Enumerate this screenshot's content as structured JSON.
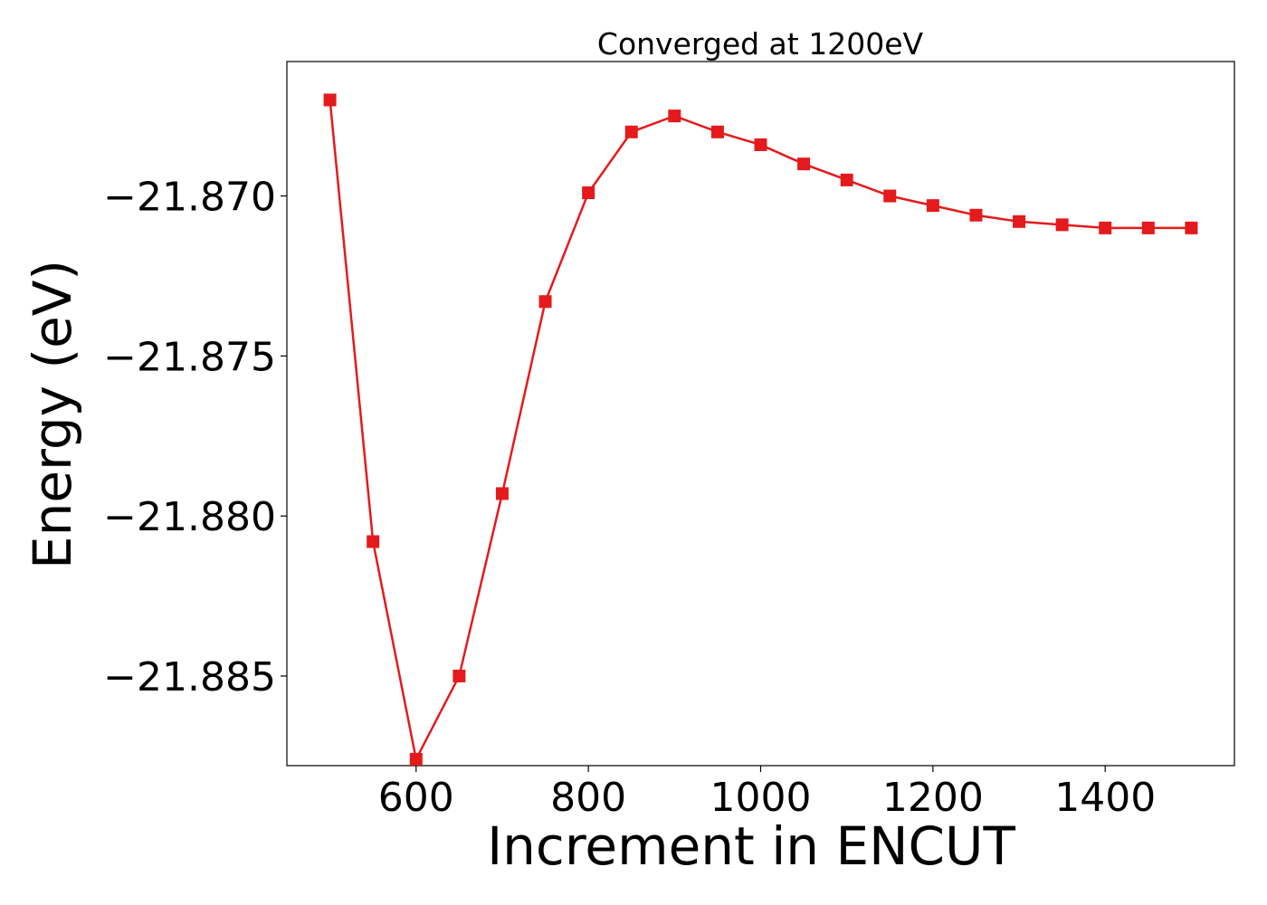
{
  "chart_data": {
    "type": "line",
    "title": "Converged at 1200eV",
    "xlabel": "Increment in ENCUT",
    "ylabel": "Energy (eV)",
    "xlim": [
      450,
      1550
    ],
    "ylim": [
      -21.8878,
      -21.8658
    ],
    "xticks": [
      600,
      800,
      1000,
      1200,
      1400
    ],
    "xtick_labels": [
      "600",
      "800",
      "1000",
      "1200",
      "1400"
    ],
    "yticks": [
      -21.87,
      -21.875,
      -21.88,
      -21.885
    ],
    "ytick_labels": [
      "−21.870",
      "−21.875",
      "−21.880",
      "−21.885"
    ],
    "grid": false,
    "series": [
      {
        "color": "#e41a1c",
        "marker": "square",
        "x": [
          500,
          550,
          600,
          650,
          700,
          750,
          800,
          850,
          900,
          950,
          1000,
          1050,
          1100,
          1150,
          1200,
          1250,
          1300,
          1350,
          1400,
          1450,
          1500
        ],
        "y": [
          -21.867,
          -21.8808,
          -21.8876,
          -21.885,
          -21.8793,
          -21.8733,
          -21.8699,
          -21.868,
          -21.8675,
          -21.868,
          -21.8684,
          -21.869,
          -21.8695,
          -21.87,
          -21.8703,
          -21.8706,
          -21.8708,
          -21.8709,
          -21.871,
          -21.871,
          -21.871
        ]
      }
    ]
  }
}
